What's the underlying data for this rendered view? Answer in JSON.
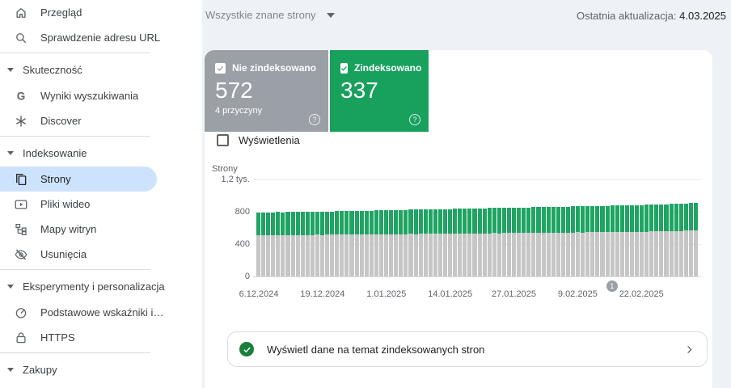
{
  "header": {
    "dropdown_label": "Wszystkie znane strony",
    "last_update_label": "Ostatnia aktualizacja:",
    "last_update_date": "4.03.2025"
  },
  "sidebar": {
    "items": [
      {
        "label": "Przegląd"
      },
      {
        "label": "Sprawdzenie adresu URL"
      },
      {
        "label": "Skuteczność"
      },
      {
        "label": "Wyniki wyszukiwania"
      },
      {
        "label": "Discover"
      },
      {
        "label": "Indeksowanie"
      },
      {
        "label": "Strony"
      },
      {
        "label": "Pliki wideo"
      },
      {
        "label": "Mapy witryn"
      },
      {
        "label": "Usunięcia"
      },
      {
        "label": "Eksperymenty i personalizacja"
      },
      {
        "label": "Podstawowe wskaźniki i…"
      },
      {
        "label": "HTTPS"
      },
      {
        "label": "Zakupy"
      }
    ]
  },
  "chips": {
    "not_indexed": {
      "label": "Nie zindeksowano",
      "value": "572",
      "sub": "4 przyczyny",
      "help": "?",
      "color": "#9aa0a6"
    },
    "indexed": {
      "label": "Zindeksowano",
      "value": "337",
      "help": "?",
      "color": "#18a05d"
    }
  },
  "impressions": {
    "label": "Wyświetlenia"
  },
  "chart_data": {
    "type": "bar",
    "stacked": true,
    "ylabel": "Strony",
    "ylim": [
      0,
      1200
    ],
    "yticks": [
      0,
      400,
      800,
      1200
    ],
    "ytick_labels": [
      "1,2 tys.",
      "800",
      "400",
      "0"
    ],
    "x_ticks": [
      {
        "index": 0,
        "label": "6.12.2024"
      },
      {
        "index": 13,
        "label": "19.12.2024"
      },
      {
        "index": 26,
        "label": "1.01.2025"
      },
      {
        "index": 39,
        "label": "14.01.2025"
      },
      {
        "index": 52,
        "label": "27.01.2025"
      },
      {
        "index": 65,
        "label": "9.02.2025"
      },
      {
        "index": 78,
        "label": "22.02.2025"
      }
    ],
    "marker": {
      "label": "1",
      "index": 72
    },
    "series": [
      {
        "name": "Nie zindeksowano",
        "color": "#c6c6c6",
        "values": [
          508,
          510,
          509,
          511,
          512,
          510,
          513,
          512,
          514,
          513,
          515,
          514,
          516,
          515,
          516,
          517,
          516,
          518,
          517,
          519,
          518,
          520,
          521,
          520,
          522,
          521,
          523,
          522,
          524,
          523,
          525,
          526,
          525,
          527,
          526,
          528,
          527,
          529,
          530,
          529,
          531,
          530,
          532,
          531,
          533,
          534,
          533,
          535,
          536,
          535,
          537,
          536,
          538,
          539,
          538,
          540,
          540,
          541,
          540,
          542,
          543,
          542,
          544,
          543,
          545,
          546,
          545,
          547,
          546,
          548,
          549,
          548,
          550,
          551,
          550,
          552,
          553,
          552,
          554,
          555,
          556,
          558,
          557,
          559,
          560,
          562,
          565,
          568,
          570,
          572
        ]
      },
      {
        "name": "Zindeksowano",
        "color": "#1fa463",
        "values": [
          282,
          281,
          283,
          282,
          284,
          283,
          285,
          284,
          286,
          285,
          287,
          286,
          288,
          287,
          289,
          288,
          290,
          291,
          290,
          292,
          291,
          293,
          294,
          293,
          295,
          296,
          295,
          297,
          298,
          297,
          299,
          300,
          301,
          300,
          302,
          303,
          302,
          304,
          305,
          306,
          305,
          307,
          308,
          307,
          309,
          310,
          309,
          311,
          312,
          311,
          313,
          314,
          313,
          315,
          316,
          315,
          317,
          316,
          318,
          319,
          318,
          320,
          321,
          320,
          322,
          323,
          322,
          324,
          323,
          325,
          326,
          325,
          327,
          328,
          327,
          329,
          330,
          329,
          331,
          332,
          333,
          334,
          333,
          335,
          336,
          337,
          338,
          337,
          338,
          337
        ]
      }
    ]
  },
  "footer_row": {
    "text": "Wyświetl dane na temat zindeksowanych stron"
  }
}
